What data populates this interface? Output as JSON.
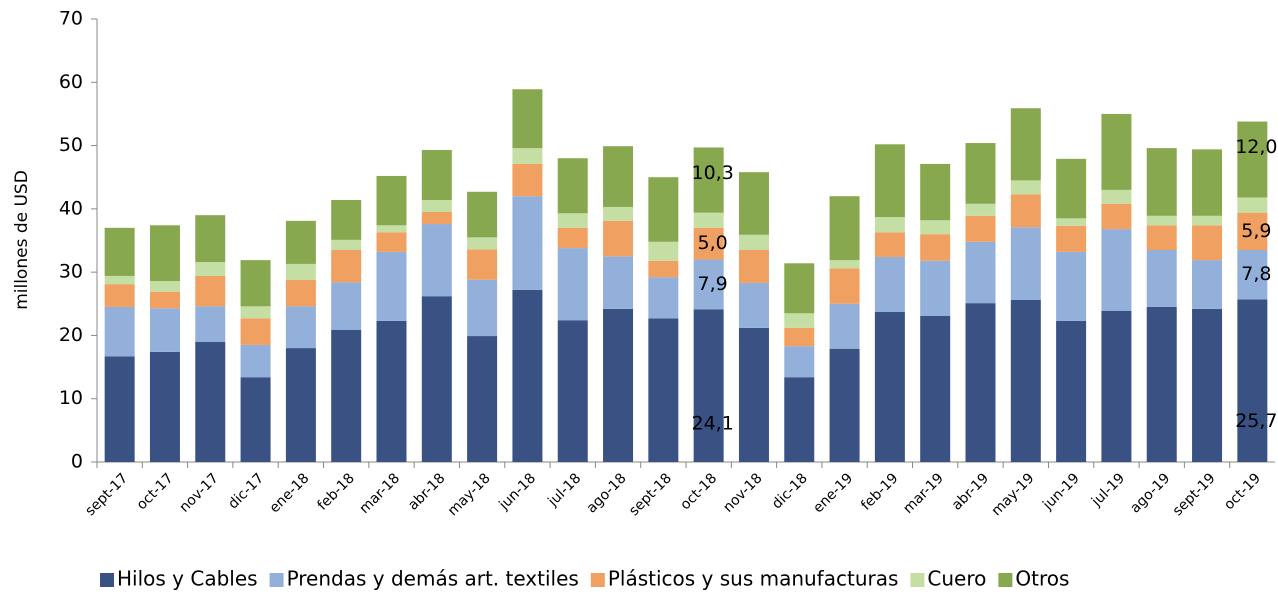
{
  "chart_data": {
    "type": "stacked_bar",
    "y_label": "millones de  USD",
    "categories": [
      "sept-17",
      "oct-17",
      "nov-17",
      "dic-17",
      "ene-18",
      "feb-18",
      "mar-18",
      "abr-18",
      "may-18",
      "jun-18",
      "jul-18",
      "ago-18",
      "sept-18",
      "oct-18",
      "nov-18",
      "dic-18",
      "ene-19",
      "feb-19",
      "mar-19",
      "abr-19",
      "may-19",
      "jun-19",
      "jul-19",
      "ago-19",
      "sept-19",
      "oct-19"
    ],
    "series": [
      {
        "name": "Hilos y Cables",
        "color": "#3a5283",
        "values": [
          16.7,
          17.4,
          19.0,
          13.4,
          18.0,
          20.9,
          22.3,
          26.2,
          19.9,
          27.2,
          22.4,
          24.2,
          22.7,
          24.1,
          21.2,
          13.4,
          17.9,
          23.7,
          23.1,
          25.1,
          25.6,
          22.3,
          23.9,
          24.5,
          24.2,
          25.7
        ],
        "value_labels": [
          null,
          null,
          null,
          null,
          null,
          null,
          null,
          null,
          null,
          null,
          null,
          null,
          null,
          "24,1",
          null,
          null,
          null,
          null,
          null,
          null,
          null,
          null,
          null,
          null,
          null,
          "25,7"
        ]
      },
      {
        "name": "Prendas y demás art. textiles",
        "color": "#92b0d9",
        "values": [
          7.8,
          6.9,
          5.6,
          5.1,
          6.6,
          7.5,
          10.9,
          11.4,
          8.9,
          14.8,
          11.4,
          8.3,
          6.5,
          7.9,
          7.1,
          4.9,
          7.1,
          8.7,
          8.7,
          9.7,
          11.5,
          10.9,
          12.9,
          9.0,
          7.7,
          7.8
        ],
        "value_labels": [
          null,
          null,
          null,
          null,
          null,
          null,
          null,
          null,
          null,
          null,
          null,
          null,
          null,
          "7,9",
          null,
          null,
          null,
          null,
          null,
          null,
          null,
          null,
          null,
          null,
          null,
          "7,8"
        ]
      },
      {
        "name": "Plásticos y sus manufacturas",
        "color": "#f0a060",
        "values": [
          3.6,
          2.6,
          4.8,
          4.2,
          4.2,
          5.1,
          3.1,
          1.9,
          4.8,
          5.1,
          3.2,
          5.6,
          2.6,
          5.0,
          5.2,
          2.9,
          5.6,
          3.9,
          4.2,
          4.1,
          5.2,
          4.1,
          4.0,
          3.9,
          5.5,
          5.9
        ],
        "value_labels": [
          null,
          null,
          null,
          null,
          null,
          null,
          null,
          null,
          null,
          null,
          null,
          null,
          null,
          "5,0",
          null,
          null,
          null,
          null,
          null,
          null,
          null,
          null,
          null,
          null,
          null,
          "5,9"
        ]
      },
      {
        "name": "Cuero",
        "color": "#c5dea3",
        "values": [
          1.3,
          1.7,
          2.2,
          1.9,
          2.5,
          1.6,
          1.1,
          1.9,
          1.9,
          2.5,
          2.3,
          2.2,
          3.0,
          2.4,
          2.4,
          2.3,
          1.3,
          2.4,
          2.2,
          1.9,
          2.2,
          1.2,
          2.2,
          1.5,
          1.5,
          2.4
        ]
      },
      {
        "name": "Otros",
        "color": "#88a84f",
        "values": [
          7.6,
          8.8,
          7.4,
          7.3,
          6.8,
          6.3,
          7.8,
          7.9,
          7.2,
          9.3,
          8.7,
          9.6,
          10.2,
          10.3,
          9.9,
          7.9,
          10.1,
          11.5,
          8.9,
          9.6,
          11.4,
          9.4,
          12.0,
          10.7,
          10.5,
          12.0
        ],
        "value_labels": [
          null,
          null,
          null,
          null,
          null,
          null,
          null,
          null,
          null,
          null,
          null,
          null,
          null,
          "10,3",
          null,
          null,
          null,
          null,
          null,
          null,
          null,
          null,
          null,
          null,
          null,
          "12,0"
        ]
      }
    ],
    "ylim": [
      0,
      70
    ],
    "yticks": [
      0,
      10,
      20,
      30,
      40,
      50,
      60,
      70
    ],
    "grid": false,
    "legend": "bottom"
  }
}
